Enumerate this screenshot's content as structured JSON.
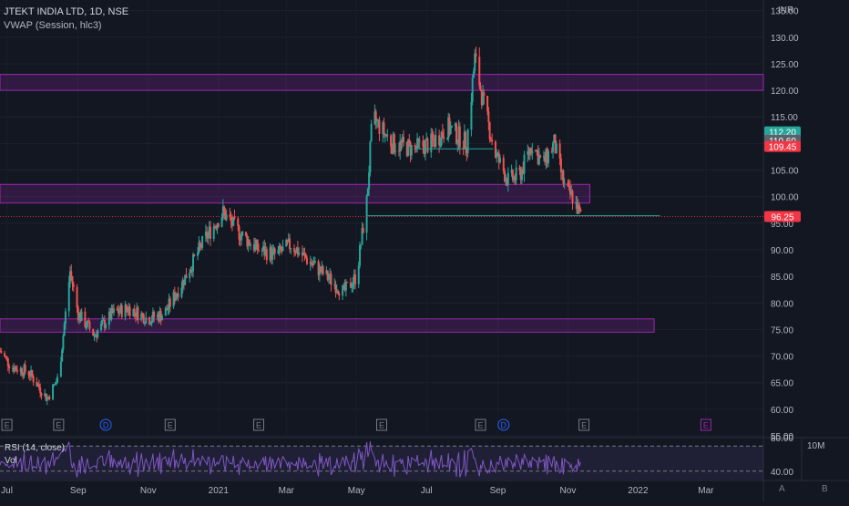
{
  "header": {
    "symbol_line": "JTEKT INDIA LTD, 1D, NSE",
    "indicator_line": "VWAP (Session, hlc3)",
    "currency": "INR"
  },
  "chart_data": {
    "type": "candlestick",
    "title": "JTEKT INDIA LTD, 1D, NSE",
    "ylim": [
      55,
      137
    ],
    "y_ticks": [
      55,
      60,
      65,
      70,
      75,
      80,
      85,
      90,
      95,
      100,
      105,
      110,
      115,
      120,
      125,
      130,
      135
    ],
    "x_ticks": [
      "Jul",
      "Sep",
      "Nov",
      "2021",
      "Mar",
      "May",
      "Jul",
      "Sep",
      "Nov",
      "2022",
      "Mar"
    ],
    "x_range": [
      "2020-06-25",
      "2022-04-20"
    ],
    "last_date": "2021-11-12",
    "price_path": [
      [
        "2020-06-25",
        71
      ],
      [
        "2020-07-05",
        68
      ],
      [
        "2020-07-20",
        67
      ],
      [
        "2020-08-05",
        62
      ],
      [
        "2020-08-15",
        66
      ],
      [
        "2020-08-25",
        86
      ],
      [
        "2020-09-01",
        78
      ],
      [
        "2020-09-15",
        74
      ],
      [
        "2020-10-01",
        78
      ],
      [
        "2020-10-15",
        79
      ],
      [
        "2020-11-01",
        77
      ],
      [
        "2020-11-15",
        78
      ],
      [
        "2020-12-01",
        84
      ],
      [
        "2020-12-20",
        92
      ],
      [
        "2021-01-05",
        97
      ],
      [
        "2021-01-20",
        93
      ],
      [
        "2021-02-05",
        90
      ],
      [
        "2021-02-20",
        89
      ],
      [
        "2021-03-05",
        91
      ],
      [
        "2021-03-20",
        88
      ],
      [
        "2021-04-05",
        85
      ],
      [
        "2021-04-20",
        82
      ],
      [
        "2021-05-01",
        85
      ],
      [
        "2021-05-10",
        99
      ],
      [
        "2021-05-15",
        115
      ],
      [
        "2021-06-01",
        110
      ],
      [
        "2021-06-20",
        109
      ],
      [
        "2021-07-05",
        110
      ],
      [
        "2021-07-20",
        113
      ],
      [
        "2021-08-05",
        110
      ],
      [
        "2021-08-12",
        126
      ],
      [
        "2021-08-20",
        117
      ],
      [
        "2021-08-30",
        108
      ],
      [
        "2021-09-10",
        103
      ],
      [
        "2021-09-20",
        104
      ],
      [
        "2021-10-01",
        110
      ],
      [
        "2021-10-10",
        106
      ],
      [
        "2021-10-20",
        110
      ],
      [
        "2021-10-30",
        101
      ],
      [
        "2021-11-05",
        100
      ],
      [
        "2021-11-12",
        96.25
      ]
    ],
    "zones": [
      {
        "from": 120,
        "to": 123,
        "start": "2020-06-25",
        "end": "2022-04-20"
      },
      {
        "from": 98.8,
        "to": 102.3,
        "start": "2020-06-25",
        "end": "2021-11-20"
      },
      {
        "from": 74.5,
        "to": 77,
        "start": "2020-06-25",
        "end": "2022-01-15"
      }
    ],
    "levels": [
      {
        "value": 96.4,
        "start": "2021-05-10",
        "end": "2022-01-20",
        "color": "#26a69a"
      },
      {
        "value": 109,
        "start": "2021-06-20",
        "end": "2021-08-28",
        "color": "#26a69a"
      }
    ],
    "price_labels": [
      {
        "text": "112.20",
        "value": 112.2,
        "color": "#26a69a"
      },
      {
        "text": "110.60",
        "value": 110.6,
        "color": "#5d606b"
      },
      {
        "text": "109.45",
        "value": 109.45,
        "color": "#f23645"
      },
      {
        "text": "96.25",
        "value": 96.25,
        "color": "#f23645"
      }
    ],
    "events": [
      {
        "label": "E",
        "date": "2020-07-01",
        "color": "#787b86"
      },
      {
        "label": "E",
        "date": "2020-08-15",
        "color": "#787b86"
      },
      {
        "label": "D",
        "date": "2020-09-25",
        "color": "#2962ff"
      },
      {
        "label": "E",
        "date": "2020-11-20",
        "color": "#787b86"
      },
      {
        "label": "E",
        "date": "2021-02-05",
        "color": "#787b86"
      },
      {
        "label": "E",
        "date": "2021-05-23",
        "color": "#787b86"
      },
      {
        "label": "E",
        "date": "2021-08-17",
        "color": "#787b86"
      },
      {
        "label": "D",
        "date": "2021-09-06",
        "color": "#2962ff"
      },
      {
        "label": "E",
        "date": "2021-11-15",
        "color": "#787b86"
      },
      {
        "label": "E",
        "date": "2022-03-01",
        "color": "#9c27b0"
      }
    ],
    "rsi": {
      "label": "RSI (14, close)",
      "ylim": [
        30,
        80
      ],
      "ticks": [
        80,
        40
      ],
      "band": [
        30,
        70
      ],
      "color": "#7e57c2"
    },
    "volume": {
      "label": "Vol",
      "scale_label": "10M"
    }
  },
  "axis_buttons": {
    "auto": "A",
    "log": "B"
  }
}
